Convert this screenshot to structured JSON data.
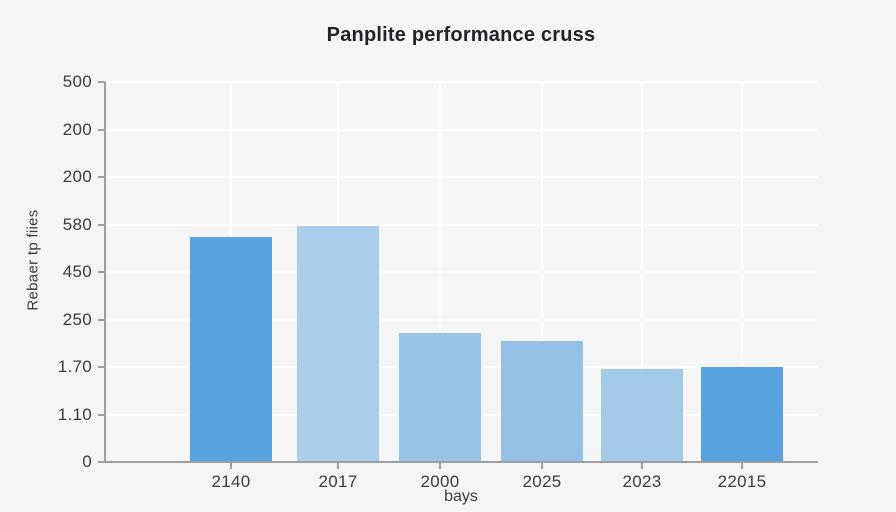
{
  "colors": {
    "background": "#f5f5f6",
    "gridline": "#ffffff",
    "axis": "#9e9ea1",
    "text": "#3c3c40",
    "title_text": "#242428"
  },
  "chart_data": {
    "type": "bar",
    "title": "Panplite performance cruss",
    "xlabel": "bays",
    "ylabel": "Rebaer tp fiies",
    "categories": [
      "2140",
      "2017",
      "2000",
      "2025",
      "2023",
      "22015"
    ],
    "values": [
      4.72,
      4.95,
      2.7,
      2.53,
      1.94,
      1.97
    ],
    "value_unit": "y-grid units (1 unit = spacing between adjacent horizontal gridlines)",
    "bar_colors": [
      "#58a4e1",
      "#a9cdea",
      "#97c5e7",
      "#94c2e6",
      "#a2cbe9",
      "#56a2de"
    ],
    "y_tick_labels_bottom_to_top": [
      "0",
      "1.10",
      "1.70",
      "250",
      "450",
      "580",
      "200",
      "200",
      "500"
    ],
    "ylim": [
      0,
      8
    ],
    "grid": true,
    "legend": false
  }
}
